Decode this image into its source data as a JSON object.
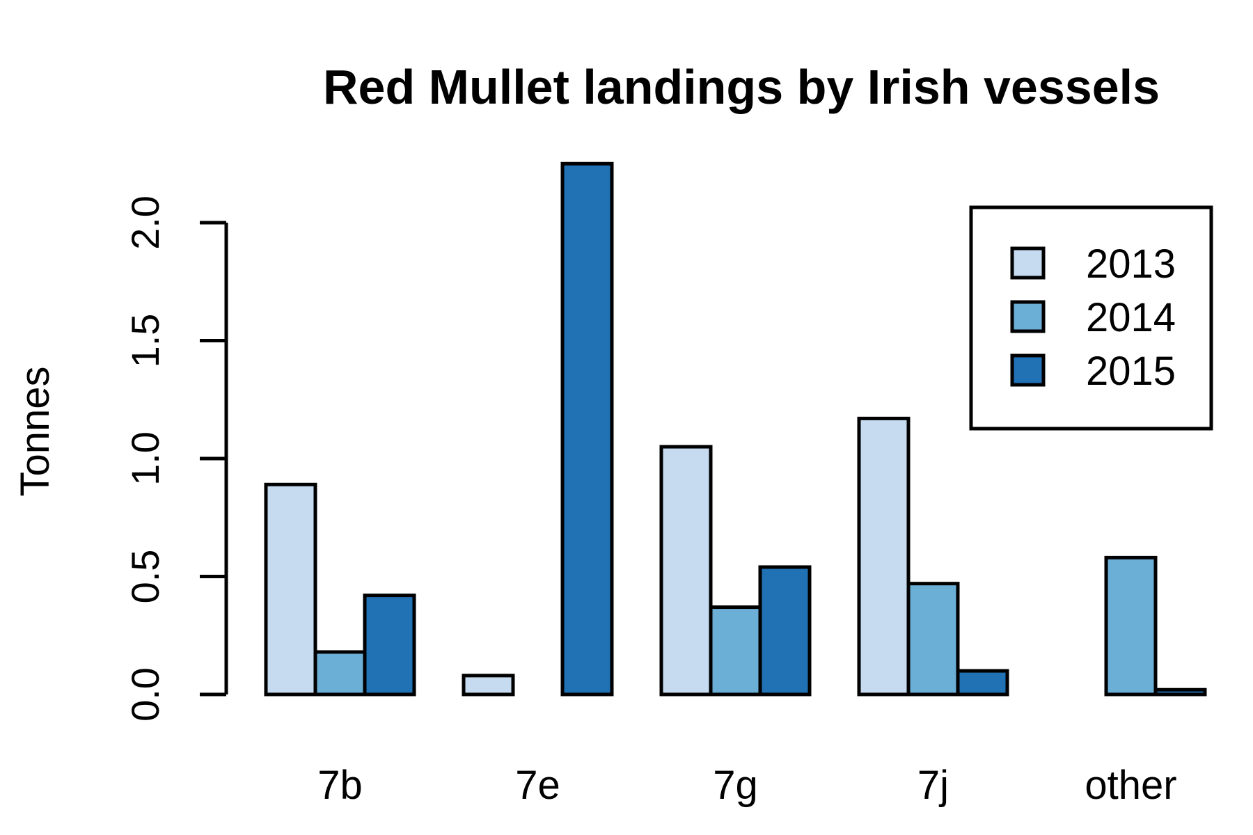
{
  "chart_data": {
    "type": "bar",
    "title": "Red Mullet landings by Irish vessels",
    "xlabel": "",
    "ylabel": "Tonnes",
    "categories": [
      "7b",
      "7e",
      "7g",
      "7j",
      "other"
    ],
    "series": [
      {
        "name": "2013",
        "color": "#c6dbef",
        "values": [
          0.89,
          0.08,
          1.05,
          1.17,
          0.0
        ]
      },
      {
        "name": "2014",
        "color": "#6baed6",
        "values": [
          0.18,
          0.0,
          0.37,
          0.47,
          0.58
        ]
      },
      {
        "name": "2015",
        "color": "#2171b5",
        "values": [
          0.42,
          2.25,
          0.54,
          0.1,
          0.02
        ]
      }
    ],
    "yticks": [
      0.0,
      0.5,
      1.0,
      1.5,
      2.0
    ],
    "ytick_labels": [
      "0.0",
      "0.5",
      "1.0",
      "1.5",
      "2.0"
    ],
    "ylim": [
      0,
      2.0
    ],
    "grid": false,
    "legend_position": "top-right"
  }
}
